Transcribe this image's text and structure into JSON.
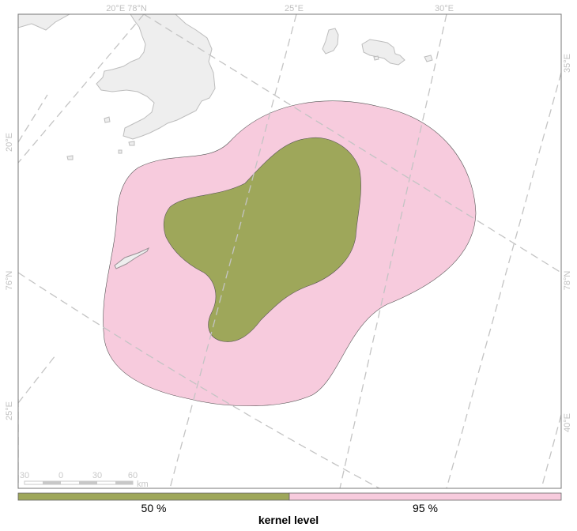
{
  "map": {
    "top_labels": [
      "20°E 78°N",
      "25°E",
      "30°E"
    ],
    "right_labels": [
      "35°E",
      "78°N",
      "40°E"
    ],
    "left_labels": [
      "20°E",
      "76°N",
      "25°E"
    ],
    "scale_bar": {
      "ticks": [
        "30",
        "0",
        "30",
        "60"
      ],
      "unit": "km"
    },
    "colors": {
      "land": "#eeeeee",
      "land_stroke": "#bdbdbd",
      "graticule": "#c4c4c4",
      "kernel_50": "#9ea75a",
      "kernel_95": "#f7cbdd",
      "frame": "#777777"
    }
  },
  "legend": {
    "title": "kernel level",
    "items": [
      {
        "label": "50 %",
        "color": "#9ea75a"
      },
      {
        "label": "95 %",
        "color": "#f7cbdd"
      }
    ]
  }
}
